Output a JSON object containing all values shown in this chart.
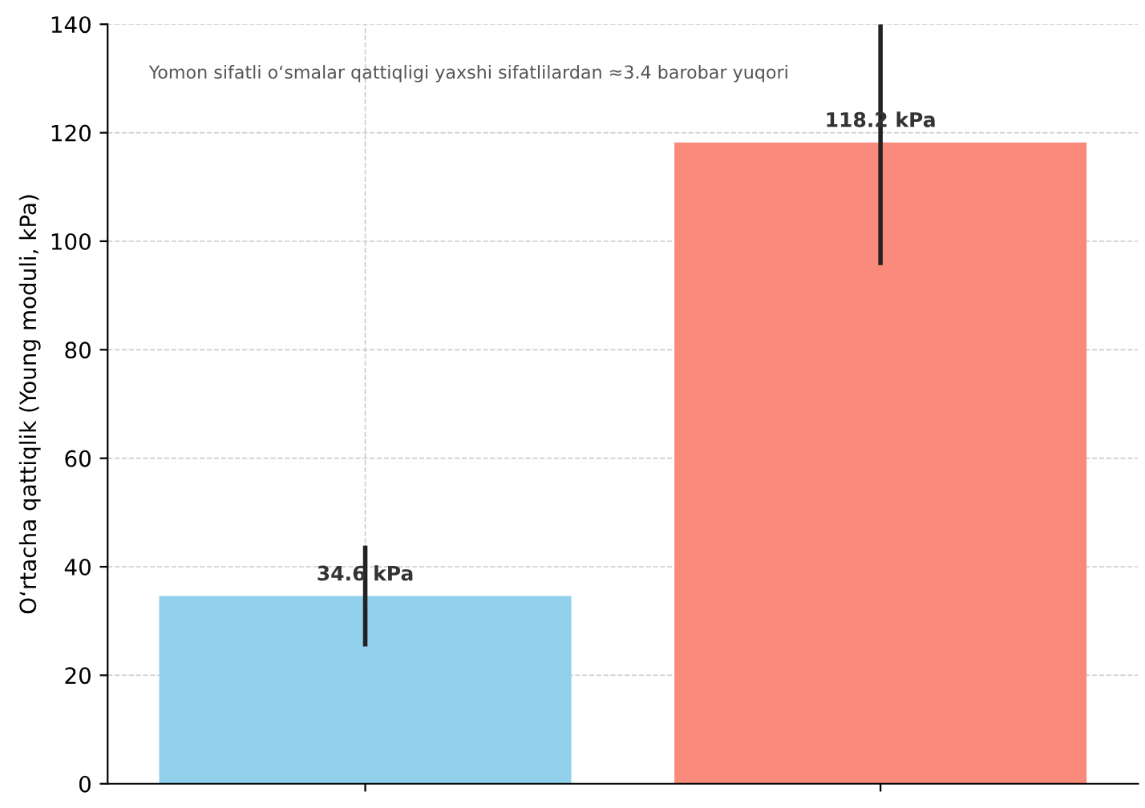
{
  "chart_data": {
    "type": "bar",
    "ylabel": "O‘rtacha qattiqlik (Young moduli, kPa)",
    "categories": [
      null,
      null
    ],
    "values": [
      34.6,
      118.2
    ],
    "colors": [
      "#92d1ec",
      "#fa8a7c"
    ],
    "errors": [
      [
        25.3,
        43.9
      ],
      [
        95.6,
        140
      ]
    ],
    "value_labels": [
      "34.6 kPa",
      "118.2 kPa"
    ],
    "annotations": [
      "Yomon sifatli o‘smalar qattiqligi yaxshi sifatlilardan ≈3.4 barobar yuqori"
    ],
    "ylim": [
      0,
      140
    ],
    "yticks": [
      0,
      20,
      40,
      60,
      80,
      100,
      120,
      140
    ],
    "grid": true
  }
}
